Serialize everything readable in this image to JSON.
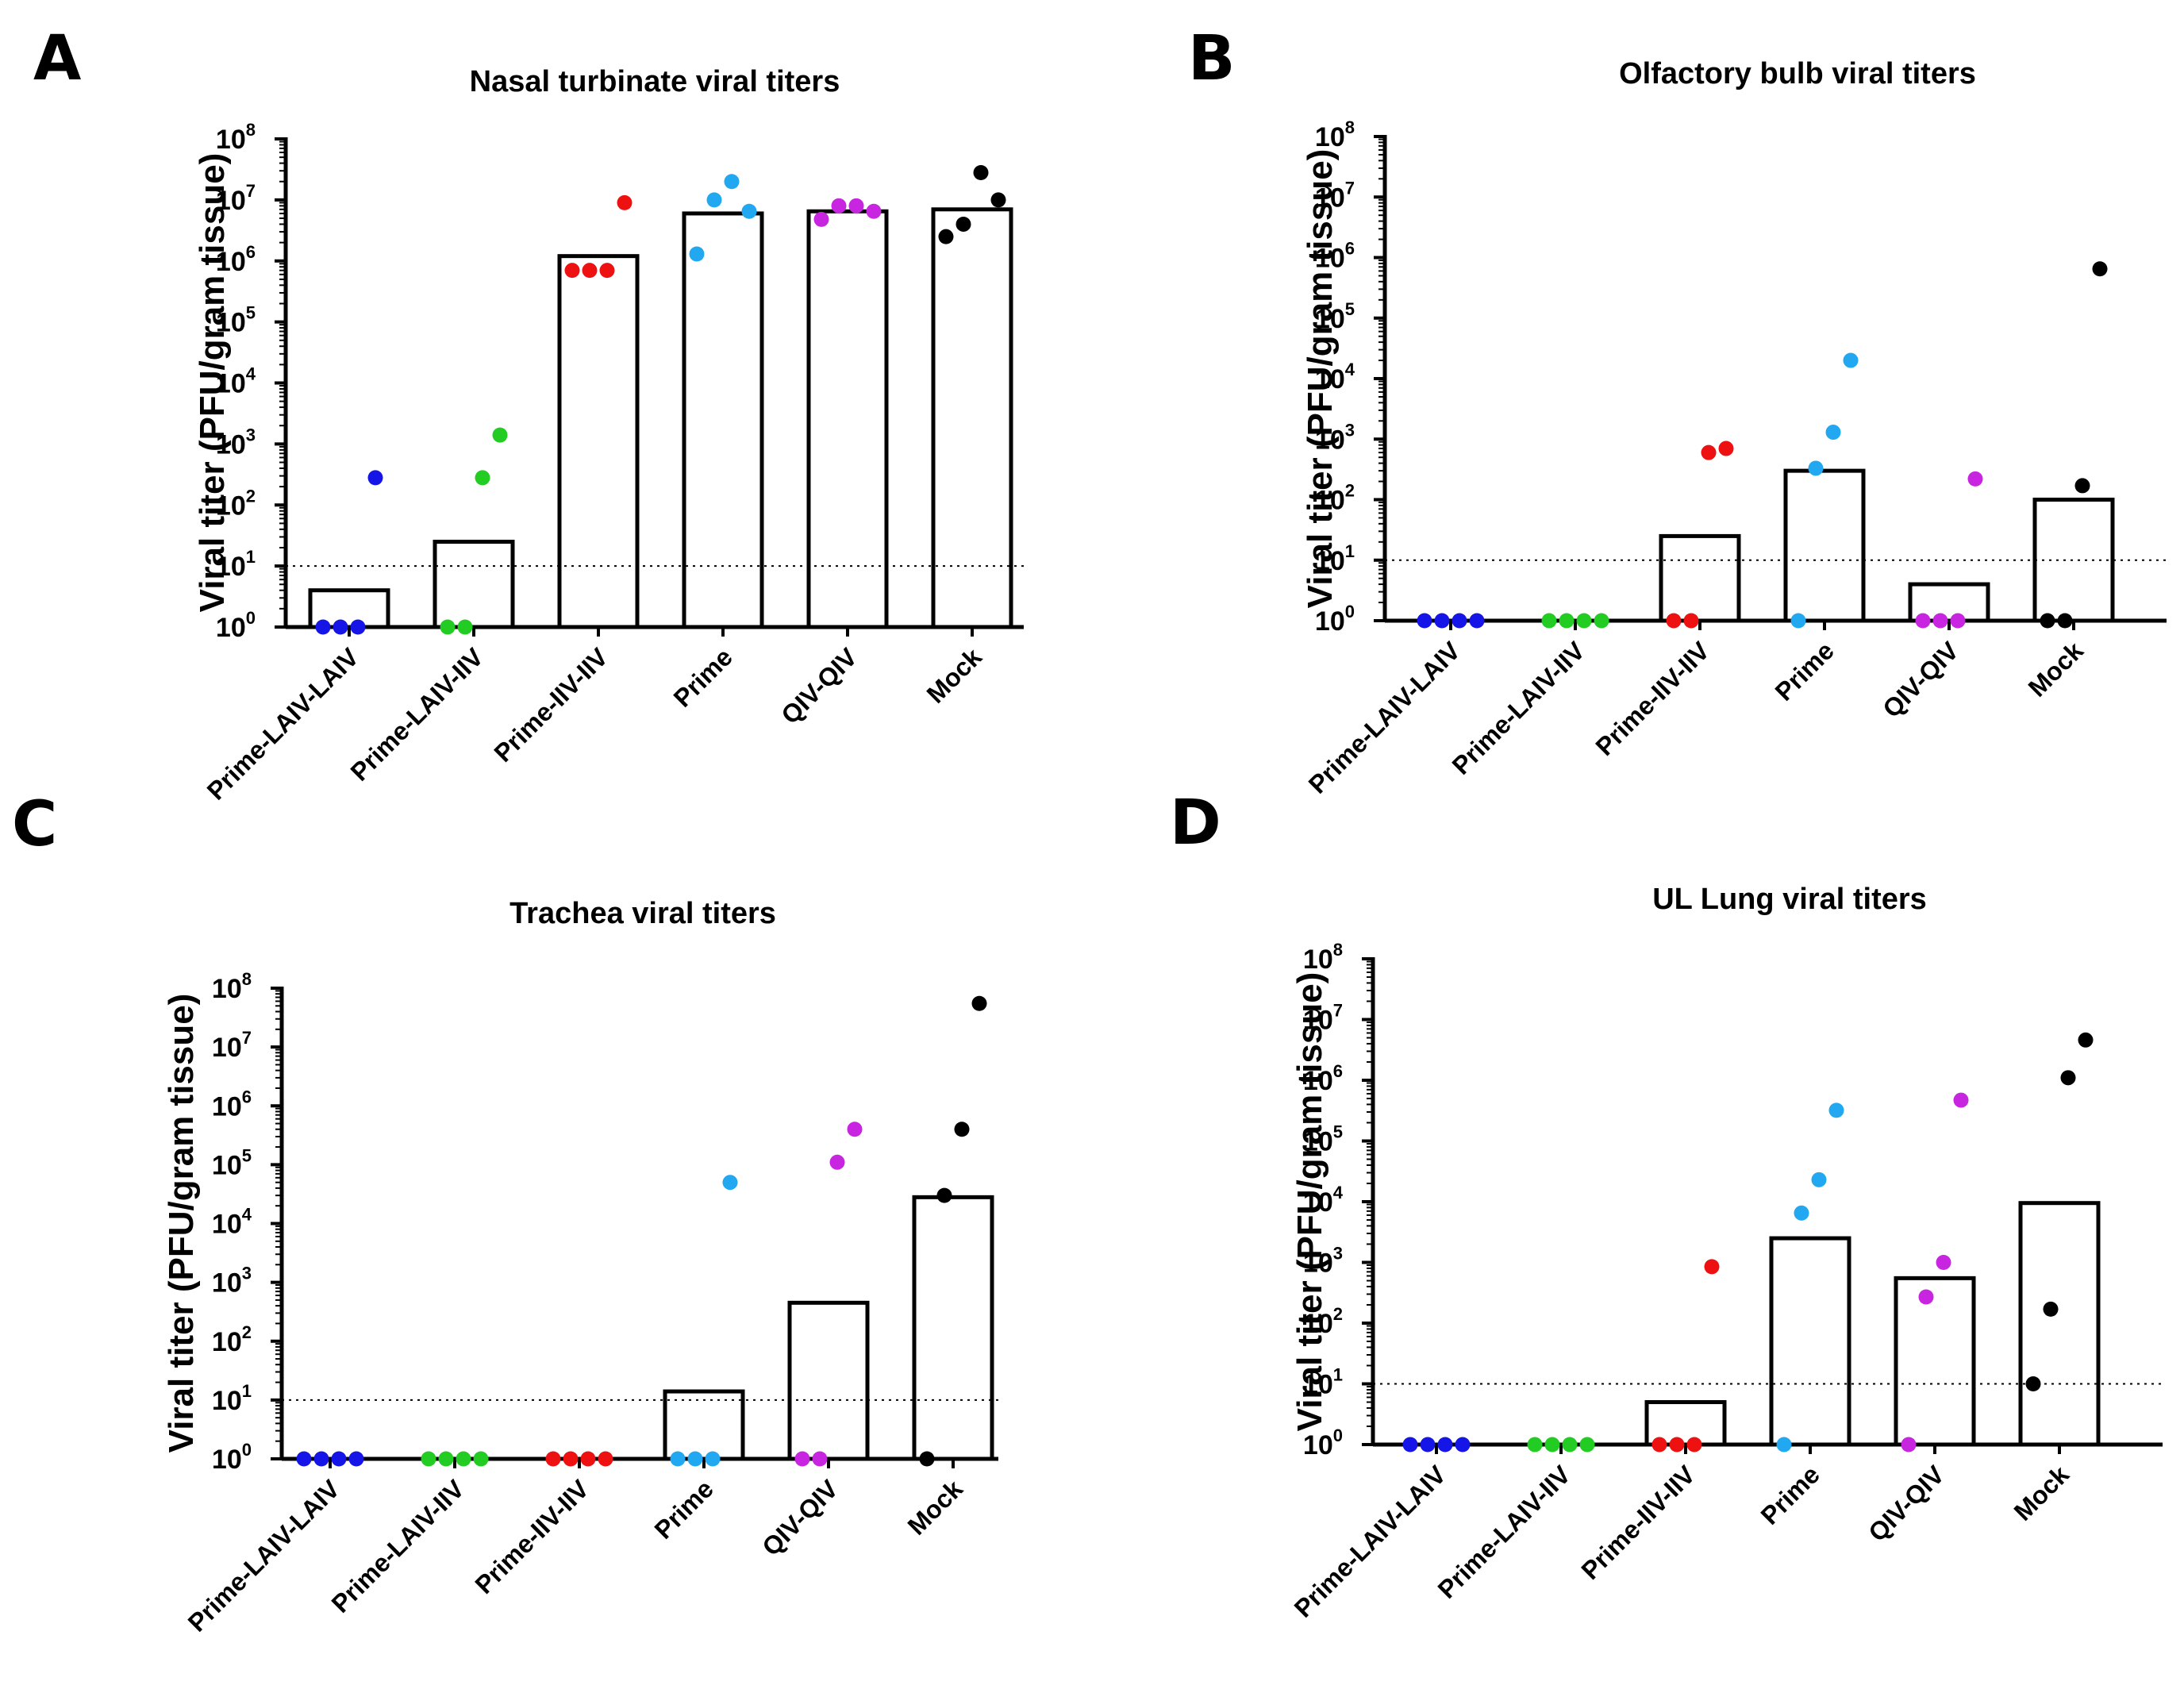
{
  "colors": {
    "Prime-LAIV-LAIV": "#1515e8",
    "Prime-LAIV-IIV": "#22cc22",
    "Prime-IIV-IIV": "#ee1111",
    "Prime": "#22a8f0",
    "QIV-QIV": "#c825e0",
    "Mock": "#000000"
  },
  "chart_data": [
    {
      "panel": "A",
      "type": "bar",
      "title": "Nasal turbinate viral titers",
      "ylabel": "Viral titer (PFU/gram tissue)",
      "yscale": "log",
      "ylim": [
        1,
        100000000
      ],
      "limit_of_detection": 10,
      "categories": [
        "Prime-LAIV-LAIV",
        "Prime-LAIV-IIV",
        "Prime-IIV-IIV",
        "Prime",
        "QIV-QIV",
        "Mock"
      ],
      "bar_values": [
        4,
        25,
        1200000,
        6000000,
        6500000,
        7000000
      ],
      "points": [
        [
          1,
          1,
          1,
          280
        ],
        [
          1,
          1,
          280,
          1400
        ],
        [
          700000,
          700000,
          700000,
          9000000
        ],
        [
          1300000,
          10000000,
          20000000,
          6500000
        ],
        [
          4800000,
          8000000,
          8000000,
          6500000
        ],
        [
          2500000,
          4000000,
          28000000,
          10000000
        ]
      ]
    },
    {
      "panel": "B",
      "type": "bar",
      "title": "Olfactory bulb viral titers",
      "ylabel": "Viral titer (PFU/gram tissue)",
      "yscale": "log",
      "ylim": [
        1,
        100000000
      ],
      "limit_of_detection": 10,
      "categories": [
        "Prime-LAIV-LAIV",
        "Prime-LAIV-IIV",
        "Prime-IIV-IIV",
        "Prime",
        "QIV-QIV",
        "Mock"
      ],
      "bar_values": [
        1,
        1,
        25,
        300,
        4,
        100
      ],
      "points": [
        [
          1,
          1,
          1,
          1
        ],
        [
          1,
          1,
          1,
          1
        ],
        [
          1,
          1,
          600,
          700
        ],
        [
          1,
          330,
          1300,
          20000
        ],
        [
          1,
          1,
          1,
          220
        ],
        [
          1,
          1,
          170,
          650000
        ]
      ]
    },
    {
      "panel": "C",
      "type": "bar",
      "title": "Trachea viral titers",
      "ylabel": "Viral titer (PFU/gram tissue)",
      "yscale": "log",
      "ylim": [
        1,
        100000000
      ],
      "limit_of_detection": 10,
      "categories": [
        "Prime-LAIV-LAIV",
        "Prime-LAIV-IIV",
        "Prime-IIV-IIV",
        "Prime",
        "QIV-QIV",
        "Mock"
      ],
      "bar_values": [
        1,
        1,
        1,
        14,
        450,
        28000
      ],
      "points": [
        [
          1,
          1,
          1,
          1
        ],
        [
          1,
          1,
          1,
          1
        ],
        [
          1,
          1,
          1,
          1
        ],
        [
          1,
          1,
          1,
          50000
        ],
        [
          1,
          1,
          110000,
          400000
        ],
        [
          1,
          30000,
          400000,
          55000000
        ]
      ]
    },
    {
      "panel": "D",
      "type": "bar",
      "title": "UL Lung viral titers",
      "ylabel": "Viral titer (PFU/gram tissue)",
      "yscale": "log",
      "ylim": [
        1,
        100000000
      ],
      "limit_of_detection": 10,
      "categories": [
        "Prime-LAIV-LAIV",
        "Prime-LAIV-IIV",
        "Prime-IIV-IIV",
        "Prime",
        "QIV-QIV",
        "Mock"
      ],
      "bar_values": [
        1,
        1,
        5,
        2500,
        550,
        9500
      ],
      "points": [
        [
          1,
          1,
          1,
          1
        ],
        [
          1,
          1,
          1,
          1
        ],
        [
          1,
          1,
          1,
          850
        ],
        [
          1,
          6500,
          23000,
          320000
        ],
        [
          1,
          270,
          1000,
          470000
        ],
        [
          10,
          170,
          1100000,
          4600000
        ]
      ]
    }
  ]
}
